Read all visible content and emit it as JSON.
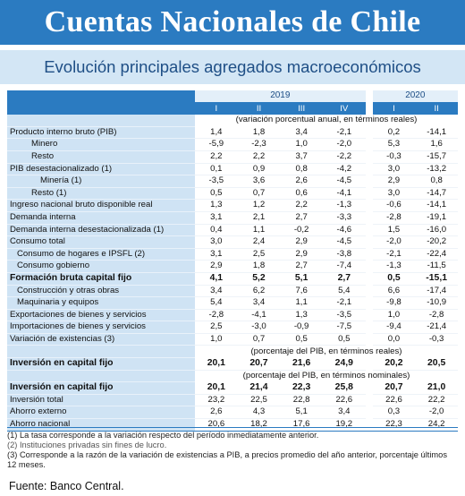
{
  "title": "Cuentas Nacionales de Chile",
  "subtitle": "Evolución principales agregados macroeconómicos",
  "table": {
    "years": [
      "2019",
      "2020"
    ],
    "quarters": [
      "I",
      "II",
      "III",
      "IV",
      "I",
      "II"
    ],
    "sections": [
      {
        "note": "(variación porcentual anual, en términos reales)",
        "rows": [
          {
            "label": "Producto interno bruto (PIB)",
            "values": [
              "1,4",
              "1,8",
              "3,4",
              "-2,1",
              "0,2",
              "-14,1"
            ]
          },
          {
            "label": "Minero",
            "values": [
              "-5,9",
              "-2,3",
              "1,0",
              "-2,0",
              "5,3",
              "1,6"
            ]
          },
          {
            "label": "Resto",
            "values": [
              "2,2",
              "2,2",
              "3,7",
              "-2,2",
              "-0,3",
              "-15,7"
            ]
          },
          {
            "label": "PIB desestacionalizado (1)",
            "values": [
              "0,1",
              "0,9",
              "0,8",
              "-4,2",
              "3,0",
              "-13,2"
            ]
          },
          {
            "label": "Minería (1)",
            "values": [
              "-3,5",
              "3,6",
              "2,6",
              "-4,5",
              "2,9",
              "0,8"
            ]
          },
          {
            "label": "Resto (1)",
            "values": [
              "0,5",
              "0,7",
              "0,6",
              "-4,1",
              "3,0",
              "-14,7"
            ]
          },
          {
            "label": "Ingreso nacional bruto disponible real",
            "values": [
              "1,3",
              "1,2",
              "2,2",
              "-1,3",
              "-0,6",
              "-14,1"
            ]
          },
          {
            "label": "Demanda interna",
            "values": [
              "3,1",
              "2,1",
              "2,7",
              "-3,3",
              "-2,8",
              "-19,1"
            ]
          },
          {
            "label": "Demanda interna desestacionalizada (1)",
            "values": [
              "0,4",
              "1,1",
              "-0,2",
              "-4,6",
              "1,5",
              "-16,0"
            ]
          },
          {
            "label": "Consumo total",
            "values": [
              "3,0",
              "2,4",
              "2,9",
              "-4,5",
              "-2,0",
              "-20,2"
            ]
          },
          {
            "label": "Consumo de hogares e IPSFL (2)",
            "values": [
              "3,1",
              "2,5",
              "2,9",
              "-3,8",
              "-2,1",
              "-22,4"
            ]
          },
          {
            "label": "Consumo gobierno",
            "values": [
              "2,9",
              "1,8",
              "2,7",
              "-7,4",
              "-1,3",
              "-11,5"
            ]
          },
          {
            "label": "Formación bruta capital fijo",
            "values": [
              "4,1",
              "5,2",
              "5,1",
              "2,7",
              "0,5",
              "-15,1"
            ]
          },
          {
            "label": "Construcción y otras obras",
            "values": [
              "3,4",
              "6,2",
              "7,6",
              "5,4",
              "6,6",
              "-17,4"
            ]
          },
          {
            "label": "Maquinaria y equipos",
            "values": [
              "5,4",
              "3,4",
              "1,1",
              "-2,1",
              "-9,8",
              "-10,9"
            ]
          },
          {
            "label": "Exportaciones de bienes y servicios",
            "values": [
              "-2,8",
              "-4,1",
              "1,3",
              "-3,5",
              "1,0",
              "-2,8"
            ]
          },
          {
            "label": "Importaciones de bienes y servicios",
            "values": [
              "2,5",
              "-3,0",
              "-0,9",
              "-7,5",
              "-9,4",
              "-21,4"
            ]
          },
          {
            "label": "Variación de existencias (3)",
            "values": [
              "1,0",
              "0,7",
              "0,5",
              "0,5",
              "0,0",
              "-0,3"
            ]
          }
        ]
      },
      {
        "note": "(porcentaje del PIB, en términos reales)",
        "rows": [
          {
            "label": "Inversión en capital fijo",
            "values": [
              "20,1",
              "20,7",
              "21,6",
              "24,9",
              "20,2",
              "20,5"
            ]
          }
        ]
      },
      {
        "note": "(porcentaje del PIB, en términos nominales)",
        "rows": [
          {
            "label": "Inversión en capital fijo",
            "values": [
              "20,1",
              "21,4",
              "22,3",
              "25,8",
              "20,7",
              "21,0"
            ]
          },
          {
            "label": "Inversión total",
            "values": [
              "23,2",
              "22,5",
              "22,8",
              "22,6",
              "22,6",
              "22,2"
            ]
          },
          {
            "label": "Ahorro externo",
            "values": [
              "2,6",
              "4,3",
              "5,1",
              "3,4",
              "0,3",
              "-2,0"
            ]
          },
          {
            "label": "Ahorro nacional",
            "values": [
              "20,6",
              "18,2",
              "17,6",
              "19,2",
              "22,3",
              "24,2"
            ]
          }
        ]
      }
    ]
  },
  "footnotes": [
    "(1) La tasa corresponde a la variación respecto del período inmediatamente anterior.",
    "(2) Instituciones privadas sin fines de lucro.",
    "(3) Corresponde a la razón de la variación de existencias a PIB, a precios promedio del año anterior, porcentaje últimos 12 meses."
  ],
  "source": "Fuente: Banco Central."
}
